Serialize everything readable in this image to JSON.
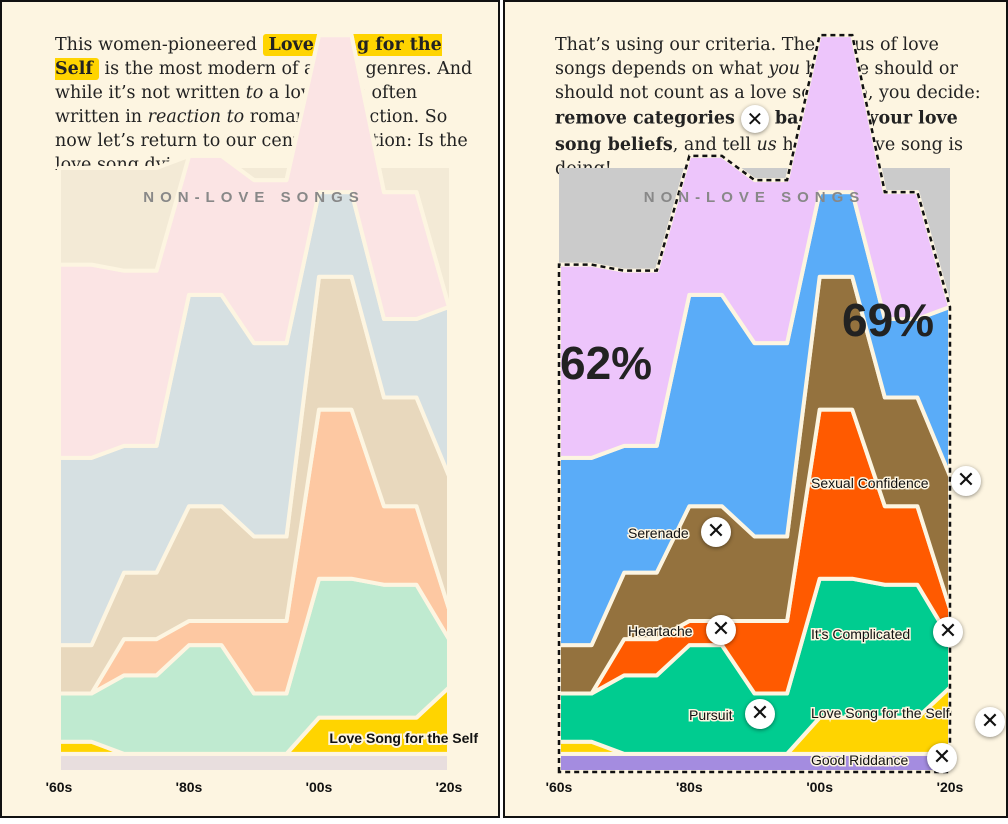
{
  "left": {
    "para": {
      "t1": "This women-pioneered ",
      "hl": "Love Song for the Self",
      "t2": " is the most modern of all the genres. And while it’s not written ",
      "em1": "to",
      "t3": " a lover, it’s often written in ",
      "em2": "reaction to",
      "t4": " romantic rejection. So now let’s return to our central question: Is the love song dying?"
    }
  },
  "right": {
    "para": {
      "t1": "That’s using our criteria. The status of love songs depends on what ",
      "em1": "you",
      "t2": " believe should or should not count as a love song. So, you decide: ",
      "b1": "remove categories",
      "b2": "based on your love song beliefs",
      "t3": ", and tell ",
      "em2": "us",
      "t4": " how the love song is doing!"
    },
    "remove_icon": "close-icon"
  },
  "colors": {
    "panel_bg": "#fdf5e1",
    "nonlove_left": "#f3ead6",
    "nonlove_right": "#cbcbcb",
    "serenade": "#edc5fb",
    "heartache": "#5aacf8",
    "complicated": "#94723e",
    "pursuit": "#00cc90",
    "confidence": "#ff5a00",
    "self": "#ffd400",
    "riddance": "#a48ce0",
    "accent": "#ffd400"
  },
  "chart_data": [
    {
      "type": "area",
      "title": "NON-LOVE SONGS",
      "note": "stacked share of songs by category, faded view",
      "x": [
        "1960",
        "1965",
        "1970",
        "1975",
        "1980",
        "1985",
        "1990",
        "1995",
        "2000",
        "2005",
        "2010",
        "2015",
        "2020"
      ],
      "tick_labels": [
        "'60s",
        "'80s",
        "'00s",
        "'20s"
      ],
      "ylim": [
        0,
        100
      ],
      "series": [
        {
          "name": "Good Riddance",
          "values": [
            3,
            3,
            3,
            3,
            3,
            3,
            3,
            3,
            3,
            3,
            3,
            3,
            3
          ]
        },
        {
          "name": "Love Song for the Self",
          "values": [
            2,
            2,
            0,
            0,
            0,
            0,
            0,
            0,
            6,
            6,
            6,
            6,
            11
          ]
        },
        {
          "name": "Pursuit",
          "values": [
            8,
            8,
            13,
            13,
            18,
            18,
            10,
            10,
            23,
            23,
            22,
            22,
            8
          ]
        },
        {
          "name": "Sexual Confidence",
          "values": [
            0,
            0,
            6,
            6,
            4,
            4,
            12,
            12,
            28,
            28,
            13,
            13,
            5
          ]
        },
        {
          "name": "It's Complicated",
          "values": [
            8,
            8,
            11,
            11,
            19,
            19,
            14,
            14,
            22,
            22,
            18,
            18,
            22
          ]
        },
        {
          "name": "Heartache",
          "values": [
            31,
            31,
            21,
            21,
            35,
            35,
            32,
            32,
            14,
            14,
            13,
            13,
            28
          ]
        },
        {
          "name": "Serenade",
          "values": [
            32,
            32,
            29,
            29,
            23,
            23,
            27,
            27,
            26,
            26,
            21,
            21,
            0
          ]
        },
        {
          "name": "NON-LOVE SONGS",
          "values": [
            16,
            16,
            17,
            17,
            0,
            0,
            0,
            0,
            0,
            0,
            0,
            0,
            0
          ]
        }
      ],
      "labels": [
        "Love Song for the Self"
      ]
    },
    {
      "type": "area",
      "title": "NON-LOVE SONGS",
      "x": [
        "1960",
        "1965",
        "1970",
        "1975",
        "1980",
        "1985",
        "1990",
        "1995",
        "2000",
        "2005",
        "2010",
        "2015",
        "2020"
      ],
      "tick_labels": [
        "'60s",
        "'80s",
        "'00s",
        "'20s"
      ],
      "ylim": [
        0,
        100
      ],
      "series": [
        {
          "name": "Good Riddance",
          "values": [
            3,
            3,
            3,
            3,
            3,
            3,
            3,
            3,
            3,
            3,
            3,
            3,
            3
          ]
        },
        {
          "name": "Love Song for the Self",
          "values": [
            2,
            2,
            0,
            0,
            0,
            0,
            0,
            0,
            6,
            6,
            6,
            6,
            11
          ]
        },
        {
          "name": "Pursuit",
          "values": [
            8,
            8,
            13,
            13,
            18,
            18,
            10,
            10,
            23,
            23,
            22,
            22,
            8
          ]
        },
        {
          "name": "Sexual Confidence",
          "values": [
            0,
            0,
            6,
            6,
            4,
            4,
            12,
            12,
            28,
            28,
            13,
            13,
            5
          ]
        },
        {
          "name": "It's Complicated",
          "values": [
            8,
            8,
            11,
            11,
            19,
            19,
            14,
            14,
            22,
            22,
            18,
            18,
            22
          ]
        },
        {
          "name": "Heartache",
          "values": [
            31,
            31,
            21,
            21,
            35,
            35,
            32,
            32,
            14,
            14,
            13,
            13,
            28
          ]
        },
        {
          "name": "Serenade",
          "values": [
            32,
            32,
            29,
            29,
            23,
            23,
            27,
            27,
            26,
            26,
            21,
            21,
            0
          ]
        }
      ],
      "annotations": [
        {
          "text": "62%",
          "x": "1960"
        },
        {
          "text": "69%",
          "x": "2010"
        }
      ],
      "labels": [
        "Serenade",
        "Heartache",
        "Pursuit",
        "Sexual Confidence",
        "It's Complicated",
        "Love Song for the Self",
        "Good Riddance"
      ]
    }
  ]
}
